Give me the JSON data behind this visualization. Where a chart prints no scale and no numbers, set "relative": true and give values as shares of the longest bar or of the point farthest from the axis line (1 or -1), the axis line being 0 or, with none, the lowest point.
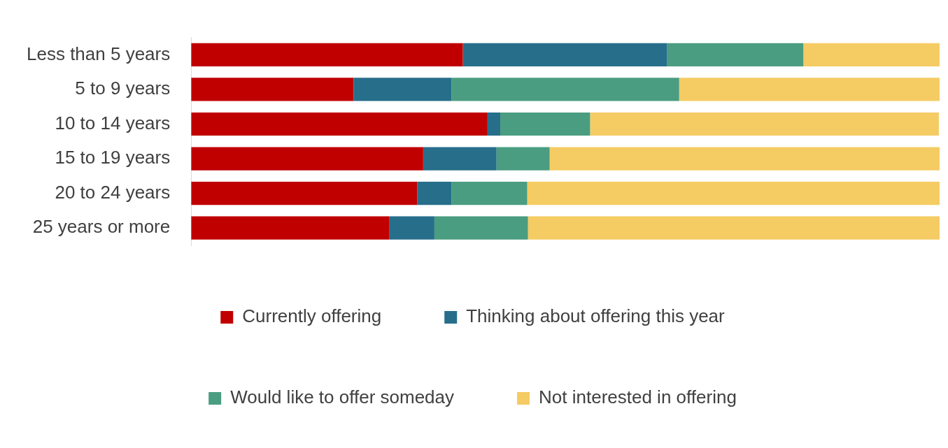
{
  "chart_data": {
    "type": "bar",
    "orientation": "horizontal",
    "stacked": true,
    "relative": true,
    "legend": "bottom",
    "categories": [
      "Less than 5 years",
      "5 to 9 years",
      "10 to 14 years",
      "15 to 19 years",
      "20 to 24 years",
      "25 years or more"
    ],
    "series": [
      {
        "name": "Currently offering",
        "color": "#c00000",
        "values": [
          0.363,
          0.217,
          0.396,
          0.31,
          0.302,
          0.265
        ]
      },
      {
        "name": "Thinking about offering this year",
        "color": "#276e8b",
        "values": [
          0.273,
          0.131,
          0.017,
          0.098,
          0.046,
          0.06
        ]
      },
      {
        "name": "Would like to offer someday",
        "color": "#4a9d80",
        "values": [
          0.182,
          0.304,
          0.12,
          0.071,
          0.101,
          0.125
        ]
      },
      {
        "name": "Not interested in offering",
        "color": "#f5cb63",
        "values": [
          0.182,
          0.348,
          0.466,
          0.521,
          0.551,
          0.55
        ]
      }
    ]
  }
}
